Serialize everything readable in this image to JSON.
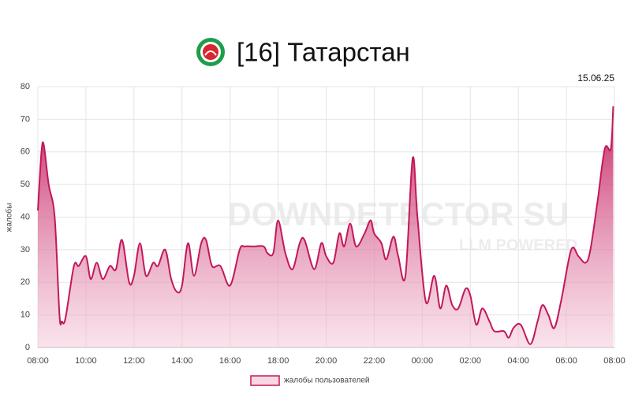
{
  "chart_data": {
    "type": "area",
    "title": "[16] Татарстан",
    "date": "15.06.25",
    "y_label": "жалобы",
    "watermark": [
      "DOWNDETECTOR SU",
      "LLM POWERED"
    ],
    "series": [
      {
        "name": "жалобы пользователей",
        "color": "#c2185b",
        "x": [
          0,
          0.15,
          0.25,
          0.45,
          0.7,
          0.9,
          1.0,
          1.15,
          1.5,
          1.7,
          2.0,
          2.2,
          2.45,
          2.7,
          3.0,
          3.25,
          3.5,
          3.8,
          4.0,
          4.25,
          4.5,
          4.8,
          5.0,
          5.3,
          5.55,
          5.8,
          6.0,
          6.25,
          6.5,
          6.8,
          7.0,
          7.25,
          7.6,
          8.0,
          8.4,
          8.6,
          9.0,
          9.4,
          9.55,
          9.8,
          10.0,
          10.3,
          10.6,
          10.9,
          11.1,
          11.5,
          11.8,
          12.0,
          12.3,
          12.55,
          12.75,
          13.0,
          13.25,
          13.6,
          13.85,
          14.0,
          14.3,
          14.5,
          14.8,
          15.0,
          15.3,
          15.6,
          15.8,
          16.15,
          16.5,
          16.75,
          17.0,
          17.25,
          17.5,
          17.8,
          18.0,
          18.25,
          18.5,
          18.8,
          19.0,
          19.4,
          19.6,
          19.8,
          20.1,
          20.5,
          20.8,
          21.0,
          21.25,
          21.5,
          21.8,
          22.2,
          22.5,
          22.8,
          23.0,
          23.3,
          23.6,
          23.85,
          23.95
        ],
        "values": [
          42,
          60,
          62,
          50,
          40,
          10,
          8,
          9,
          25,
          25,
          28,
          21,
          26,
          21,
          25,
          24,
          33,
          20,
          22,
          32,
          22,
          26,
          25,
          30,
          21,
          17,
          19,
          32,
          22,
          32,
          33,
          25,
          25,
          19,
          30,
          31,
          31,
          31,
          29,
          29,
          39,
          29,
          24,
          32,
          33,
          24,
          32,
          28,
          26,
          35,
          31,
          38,
          31,
          35,
          39,
          35,
          32,
          27,
          34,
          28,
          22,
          58,
          40,
          14,
          22,
          12,
          19,
          13,
          12,
          18,
          16,
          7,
          12,
          8,
          5,
          5,
          3,
          6,
          7,
          1,
          8,
          13,
          10,
          6,
          15,
          30,
          28,
          26,
          30,
          45,
          61,
          61,
          74
        ]
      }
    ],
    "xlim": [
      0,
      24
    ],
    "xticks": [
      {
        "value": 0,
        "label": "08:00"
      },
      {
        "value": 2,
        "label": "10:00"
      },
      {
        "value": 4,
        "label": "12:00"
      },
      {
        "value": 6,
        "label": "14:00"
      },
      {
        "value": 8,
        "label": "16:00"
      },
      {
        "value": 10,
        "label": "18:00"
      },
      {
        "value": 12,
        "label": "20:00"
      },
      {
        "value": 14,
        "label": "22:00"
      },
      {
        "value": 16,
        "label": "00:00"
      },
      {
        "value": 18,
        "label": "02:00"
      },
      {
        "value": 20,
        "label": "04:00"
      },
      {
        "value": 22,
        "label": "06:00"
      },
      {
        "value": 24,
        "label": "08:00"
      }
    ],
    "ylim": [
      0,
      80
    ],
    "yticks": [
      0,
      10,
      20,
      30,
      40,
      50,
      60,
      70,
      80
    ],
    "grid": true
  }
}
